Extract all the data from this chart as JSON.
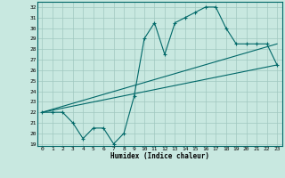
{
  "xlabel": "Humidex (Indice chaleur)",
  "x_ticks": [
    0,
    1,
    2,
    3,
    4,
    5,
    6,
    7,
    8,
    9,
    10,
    11,
    12,
    13,
    14,
    15,
    16,
    17,
    18,
    19,
    20,
    21,
    22,
    23
  ],
  "y_ticks": [
    19,
    20,
    21,
    22,
    23,
    24,
    25,
    26,
    27,
    28,
    29,
    30,
    31,
    32
  ],
  "ylim": [
    18.8,
    32.5
  ],
  "xlim": [
    -0.5,
    23.5
  ],
  "bg_color": "#c8e8e0",
  "grid_color": "#a0c8c0",
  "line_color": "#006868",
  "line1_x": [
    0,
    1,
    2,
    3,
    4,
    5,
    6,
    7,
    8,
    9,
    10,
    11,
    12,
    13,
    14,
    15,
    16,
    17,
    18,
    19,
    20,
    21,
    22,
    23
  ],
  "line1_y": [
    22,
    22,
    22,
    21,
    19.5,
    20.5,
    20.5,
    19,
    20,
    23.5,
    29,
    30.5,
    27.5,
    30.5,
    31,
    31.5,
    32,
    32,
    30,
    28.5,
    28.5,
    28.5,
    28.5,
    26.5
  ],
  "line2_x": [
    0,
    23
  ],
  "line2_y": [
    22,
    28.5
  ],
  "line3_x": [
    0,
    23
  ],
  "line3_y": [
    22,
    26.5
  ]
}
